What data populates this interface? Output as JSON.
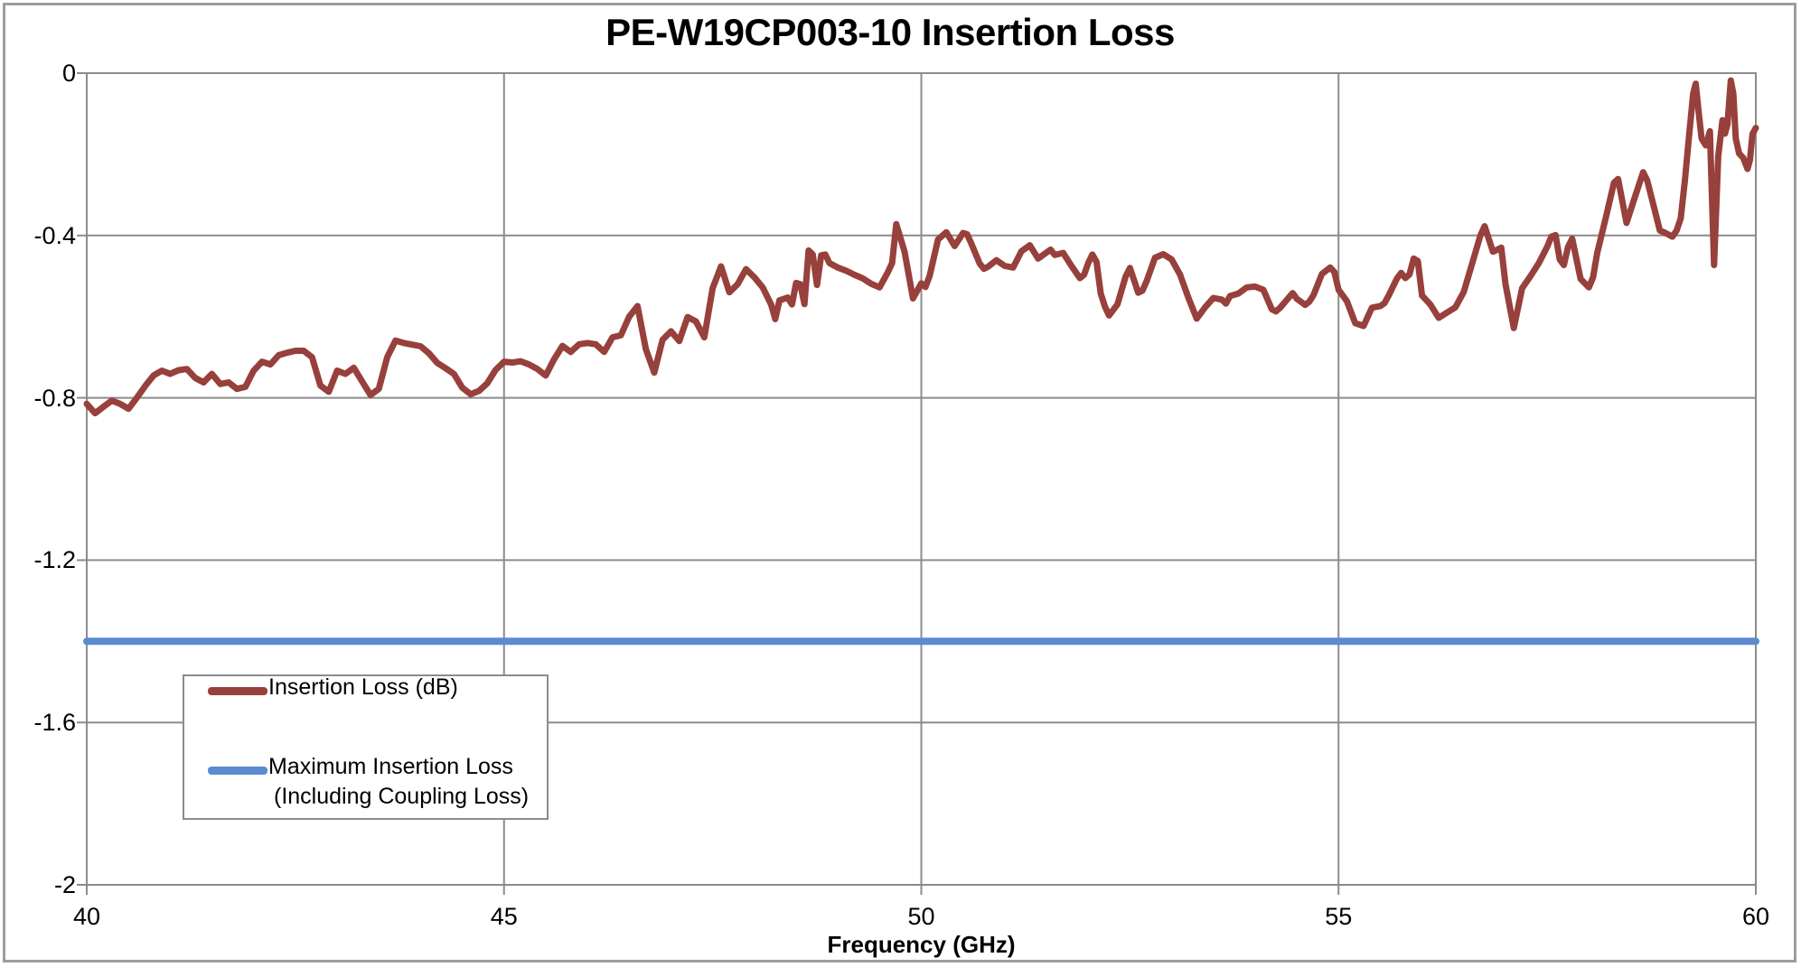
{
  "title": "PE-W19CP003-10 Insertion Loss",
  "x_axis": {
    "label": "Frequency (GHz)",
    "tick_labels": [
      "40",
      "45",
      "50",
      "55",
      "60"
    ]
  },
  "y_axis": {
    "tick_labels": [
      "0",
      "-0.4",
      "-0.8",
      "-1.2",
      "-1.6",
      "-2"
    ]
  },
  "legend": {
    "items": [
      {
        "label": "Insertion Loss (dB)",
        "color": "#97403c"
      },
      {
        "line1": "Maximum Insertion Loss",
        "line2": "(Including Coupling Loss)",
        "color": "#5b8bd0"
      }
    ]
  },
  "colors": {
    "series_red": "#97403c",
    "series_blue": "#5b8bd0",
    "gridline": "#8c8c8c",
    "frame": "#9d9d9d",
    "text": "#000000",
    "background": "#ffffff"
  },
  "chart_data": {
    "type": "line",
    "title": "PE-W19CP003-10 Insertion Loss",
    "xlabel": "Frequency (GHz)",
    "ylabel": "",
    "xlim": [
      40,
      60
    ],
    "ylim": [
      -2,
      0
    ],
    "x_ticks": [
      40,
      45,
      50,
      55,
      60
    ],
    "y_ticks": [
      0,
      -0.4,
      -0.8,
      -1.2,
      -1.6,
      -2
    ],
    "grid": true,
    "legend_position": "lower-left",
    "series": [
      {
        "name": "Insertion Loss (dB)",
        "color": "#97403c",
        "points": [
          [
            40.0,
            -0.815
          ],
          [
            40.1,
            -0.838
          ],
          [
            40.2,
            -0.822
          ],
          [
            40.3,
            -0.807
          ],
          [
            40.4,
            -0.815
          ],
          [
            40.5,
            -0.827
          ],
          [
            40.6,
            -0.8
          ],
          [
            40.7,
            -0.771
          ],
          [
            40.8,
            -0.745
          ],
          [
            40.9,
            -0.733
          ],
          [
            41.0,
            -0.741
          ],
          [
            41.1,
            -0.732
          ],
          [
            41.2,
            -0.729
          ],
          [
            41.3,
            -0.751
          ],
          [
            41.4,
            -0.762
          ],
          [
            41.5,
            -0.741
          ],
          [
            41.6,
            -0.766
          ],
          [
            41.7,
            -0.762
          ],
          [
            41.8,
            -0.778
          ],
          [
            41.9,
            -0.773
          ],
          [
            42.0,
            -0.733
          ],
          [
            42.1,
            -0.711
          ],
          [
            42.2,
            -0.718
          ],
          [
            42.3,
            -0.695
          ],
          [
            42.4,
            -0.689
          ],
          [
            42.5,
            -0.684
          ],
          [
            42.6,
            -0.684
          ],
          [
            42.7,
            -0.7
          ],
          [
            42.8,
            -0.77
          ],
          [
            42.9,
            -0.785
          ],
          [
            43.0,
            -0.733
          ],
          [
            43.1,
            -0.741
          ],
          [
            43.2,
            -0.726
          ],
          [
            43.3,
            -0.76
          ],
          [
            43.4,
            -0.793
          ],
          [
            43.5,
            -0.778
          ],
          [
            43.6,
            -0.7
          ],
          [
            43.7,
            -0.659
          ],
          [
            43.8,
            -0.665
          ],
          [
            43.9,
            -0.669
          ],
          [
            44.0,
            -0.673
          ],
          [
            44.1,
            -0.69
          ],
          [
            44.2,
            -0.714
          ],
          [
            44.3,
            -0.727
          ],
          [
            44.4,
            -0.741
          ],
          [
            44.5,
            -0.775
          ],
          [
            44.6,
            -0.791
          ],
          [
            44.7,
            -0.783
          ],
          [
            44.8,
            -0.764
          ],
          [
            44.9,
            -0.731
          ],
          [
            45.0,
            -0.711
          ],
          [
            45.1,
            -0.713
          ],
          [
            45.2,
            -0.71
          ],
          [
            45.3,
            -0.718
          ],
          [
            45.4,
            -0.729
          ],
          [
            45.5,
            -0.745
          ],
          [
            45.6,
            -0.705
          ],
          [
            45.7,
            -0.672
          ],
          [
            45.8,
            -0.687
          ],
          [
            45.9,
            -0.668
          ],
          [
            46.0,
            -0.665
          ],
          [
            46.1,
            -0.668
          ],
          [
            46.2,
            -0.687
          ],
          [
            46.3,
            -0.651
          ],
          [
            46.4,
            -0.646
          ],
          [
            46.5,
            -0.6
          ],
          [
            46.6,
            -0.574
          ],
          [
            46.7,
            -0.68
          ],
          [
            46.8,
            -0.738
          ],
          [
            46.9,
            -0.657
          ],
          [
            47.0,
            -0.636
          ],
          [
            47.1,
            -0.66
          ],
          [
            47.2,
            -0.601
          ],
          [
            47.3,
            -0.612
          ],
          [
            47.4,
            -0.651
          ],
          [
            47.5,
            -0.53
          ],
          [
            47.6,
            -0.476
          ],
          [
            47.7,
            -0.54
          ],
          [
            47.8,
            -0.52
          ],
          [
            47.9,
            -0.483
          ],
          [
            48.0,
            -0.503
          ],
          [
            48.1,
            -0.528
          ],
          [
            48.2,
            -0.57
          ],
          [
            48.25,
            -0.606
          ],
          [
            48.3,
            -0.56
          ],
          [
            48.4,
            -0.553
          ],
          [
            48.45,
            -0.57
          ],
          [
            48.5,
            -0.517
          ],
          [
            48.55,
            -0.52
          ],
          [
            48.6,
            -0.569
          ],
          [
            48.65,
            -0.437
          ],
          [
            48.7,
            -0.447
          ],
          [
            48.75,
            -0.522
          ],
          [
            48.8,
            -0.449
          ],
          [
            48.85,
            -0.447
          ],
          [
            48.9,
            -0.468
          ],
          [
            49.0,
            -0.479
          ],
          [
            49.1,
            -0.487
          ],
          [
            49.2,
            -0.497
          ],
          [
            49.3,
            -0.506
          ],
          [
            49.4,
            -0.519
          ],
          [
            49.5,
            -0.528
          ],
          [
            49.6,
            -0.49
          ],
          [
            49.65,
            -0.468
          ],
          [
            49.7,
            -0.372
          ],
          [
            49.8,
            -0.44
          ],
          [
            49.9,
            -0.555
          ],
          [
            50.0,
            -0.518
          ],
          [
            50.05,
            -0.527
          ],
          [
            50.1,
            -0.5
          ],
          [
            50.2,
            -0.41
          ],
          [
            50.3,
            -0.392
          ],
          [
            50.4,
            -0.426
          ],
          [
            50.5,
            -0.394
          ],
          [
            50.55,
            -0.397
          ],
          [
            50.6,
            -0.42
          ],
          [
            50.7,
            -0.469
          ],
          [
            50.75,
            -0.482
          ],
          [
            50.8,
            -0.477
          ],
          [
            50.9,
            -0.461
          ],
          [
            51.0,
            -0.475
          ],
          [
            51.1,
            -0.479
          ],
          [
            51.2,
            -0.439
          ],
          [
            51.3,
            -0.424
          ],
          [
            51.4,
            -0.457
          ],
          [
            51.5,
            -0.442
          ],
          [
            51.55,
            -0.435
          ],
          [
            51.6,
            -0.448
          ],
          [
            51.7,
            -0.443
          ],
          [
            51.8,
            -0.475
          ],
          [
            51.9,
            -0.505
          ],
          [
            51.95,
            -0.497
          ],
          [
            52.0,
            -0.468
          ],
          [
            52.05,
            -0.447
          ],
          [
            52.1,
            -0.465
          ],
          [
            52.15,
            -0.543
          ],
          [
            52.2,
            -0.575
          ],
          [
            52.25,
            -0.597
          ],
          [
            52.35,
            -0.57
          ],
          [
            52.45,
            -0.5
          ],
          [
            52.5,
            -0.48
          ],
          [
            52.6,
            -0.541
          ],
          [
            52.65,
            -0.536
          ],
          [
            52.7,
            -0.513
          ],
          [
            52.8,
            -0.455
          ],
          [
            52.9,
            -0.446
          ],
          [
            53.0,
            -0.459
          ],
          [
            53.1,
            -0.496
          ],
          [
            53.2,
            -0.553
          ],
          [
            53.3,
            -0.605
          ],
          [
            53.4,
            -0.577
          ],
          [
            53.5,
            -0.554
          ],
          [
            53.6,
            -0.558
          ],
          [
            53.65,
            -0.568
          ],
          [
            53.7,
            -0.549
          ],
          [
            53.8,
            -0.543
          ],
          [
            53.9,
            -0.528
          ],
          [
            54.0,
            -0.526
          ],
          [
            54.1,
            -0.534
          ],
          [
            54.2,
            -0.582
          ],
          [
            54.25,
            -0.587
          ],
          [
            54.3,
            -0.578
          ],
          [
            54.4,
            -0.554
          ],
          [
            54.45,
            -0.542
          ],
          [
            54.5,
            -0.556
          ],
          [
            54.6,
            -0.571
          ],
          [
            54.65,
            -0.563
          ],
          [
            54.7,
            -0.547
          ],
          [
            54.8,
            -0.495
          ],
          [
            54.9,
            -0.479
          ],
          [
            54.95,
            -0.49
          ],
          [
            55.0,
            -0.534
          ],
          [
            55.1,
            -0.562
          ],
          [
            55.2,
            -0.616
          ],
          [
            55.3,
            -0.623
          ],
          [
            55.35,
            -0.6
          ],
          [
            55.4,
            -0.578
          ],
          [
            55.5,
            -0.574
          ],
          [
            55.55,
            -0.567
          ],
          [
            55.6,
            -0.548
          ],
          [
            55.7,
            -0.506
          ],
          [
            55.75,
            -0.492
          ],
          [
            55.8,
            -0.505
          ],
          [
            55.85,
            -0.496
          ],
          [
            55.9,
            -0.457
          ],
          [
            55.95,
            -0.463
          ],
          [
            56.0,
            -0.548
          ],
          [
            56.1,
            -0.57
          ],
          [
            56.2,
            -0.603
          ],
          [
            56.3,
            -0.59
          ],
          [
            56.4,
            -0.577
          ],
          [
            56.5,
            -0.539
          ],
          [
            56.6,
            -0.47
          ],
          [
            56.7,
            -0.4
          ],
          [
            56.75,
            -0.377
          ],
          [
            56.85,
            -0.44
          ],
          [
            56.95,
            -0.43
          ],
          [
            57.0,
            -0.52
          ],
          [
            57.1,
            -0.628
          ],
          [
            57.2,
            -0.53
          ],
          [
            57.3,
            -0.5
          ],
          [
            57.4,
            -0.468
          ],
          [
            57.5,
            -0.428
          ],
          [
            57.55,
            -0.403
          ],
          [
            57.6,
            -0.399
          ],
          [
            57.65,
            -0.459
          ],
          [
            57.7,
            -0.473
          ],
          [
            57.75,
            -0.428
          ],
          [
            57.8,
            -0.408
          ],
          [
            57.9,
            -0.507
          ],
          [
            58.0,
            -0.528
          ],
          [
            58.05,
            -0.503
          ],
          [
            58.1,
            -0.443
          ],
          [
            58.2,
            -0.358
          ],
          [
            58.3,
            -0.27
          ],
          [
            58.35,
            -0.261
          ],
          [
            58.45,
            -0.369
          ],
          [
            58.55,
            -0.306
          ],
          [
            58.65,
            -0.244
          ],
          [
            58.7,
            -0.265
          ],
          [
            58.8,
            -0.347
          ],
          [
            58.85,
            -0.388
          ],
          [
            58.9,
            -0.392
          ],
          [
            59.0,
            -0.403
          ],
          [
            59.05,
            -0.388
          ],
          [
            59.1,
            -0.358
          ],
          [
            59.15,
            -0.265
          ],
          [
            59.2,
            -0.155
          ],
          [
            59.25,
            -0.05
          ],
          [
            59.28,
            -0.026
          ],
          [
            59.32,
            -0.105
          ],
          [
            59.35,
            -0.161
          ],
          [
            59.4,
            -0.178
          ],
          [
            59.45,
            -0.143
          ],
          [
            59.5,
            -0.473
          ],
          [
            59.55,
            -0.205
          ],
          [
            59.6,
            -0.116
          ],
          [
            59.63,
            -0.149
          ],
          [
            59.66,
            -0.127
          ],
          [
            59.7,
            -0.018
          ],
          [
            59.73,
            -0.05
          ],
          [
            59.76,
            -0.161
          ],
          [
            59.8,
            -0.198
          ],
          [
            59.85,
            -0.209
          ],
          [
            59.9,
            -0.236
          ],
          [
            59.93,
            -0.214
          ],
          [
            59.96,
            -0.15
          ],
          [
            60.0,
            -0.135
          ]
        ]
      },
      {
        "name": "Maximum Insertion Loss (Including Coupling Loss)",
        "color": "#5b8bd0",
        "points": [
          [
            40,
            -1.4
          ],
          [
            60,
            -1.4
          ]
        ]
      }
    ]
  }
}
